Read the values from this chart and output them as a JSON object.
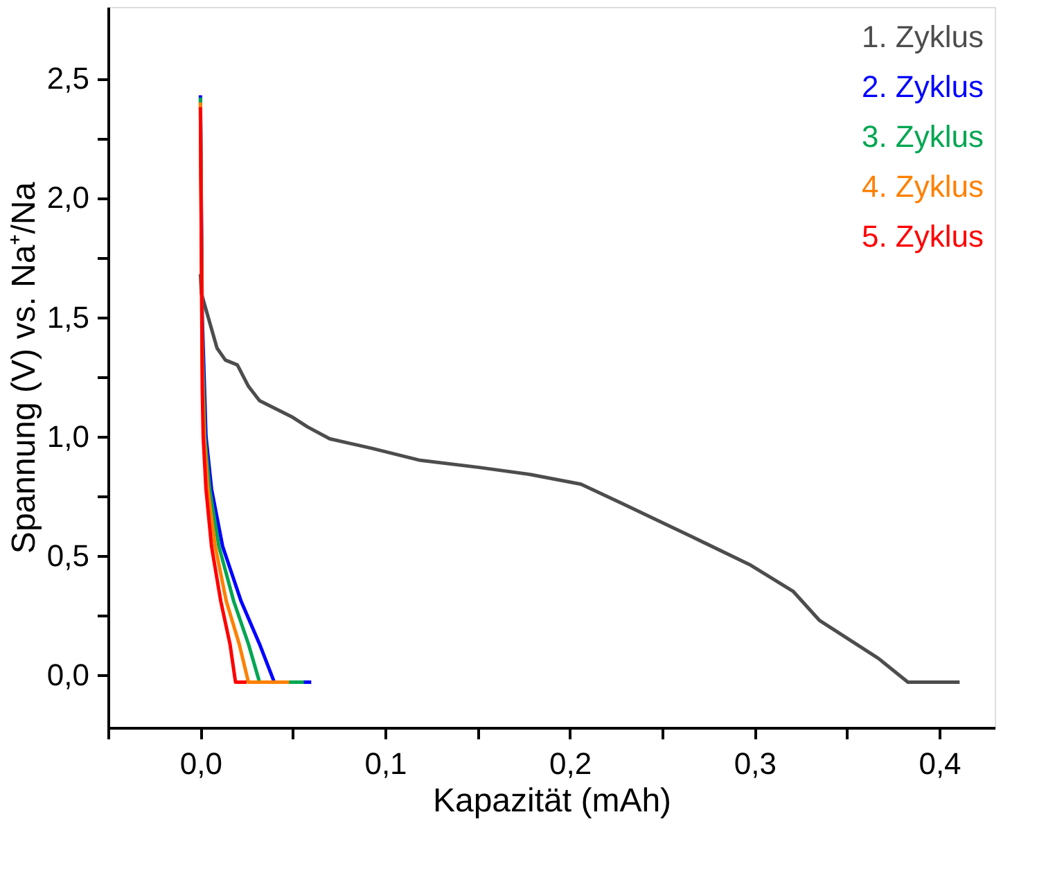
{
  "chart_data": {
    "type": "line",
    "xlabel": "Kapazität (mAh)",
    "ylabel": "Spannung (V) vs. Na⁺/Na",
    "xlim": [
      -0.05,
      0.43
    ],
    "ylim": [
      -0.22,
      2.8
    ],
    "xticks": [
      {
        "value": -0.05,
        "label": null
      },
      {
        "value": 0,
        "label": "0,0"
      },
      {
        "value": 0.05,
        "label": null
      },
      {
        "value": 0.1,
        "label": "0,1"
      },
      {
        "value": 0.15,
        "label": null
      },
      {
        "value": 0.2,
        "label": "0,2"
      },
      {
        "value": 0.25,
        "label": null
      },
      {
        "value": 0.3,
        "label": "0,3"
      },
      {
        "value": 0.35,
        "label": null
      },
      {
        "value": 0.4,
        "label": "0,4"
      }
    ],
    "yticks": [
      {
        "value": 0,
        "label": "0,0"
      },
      {
        "value": 0.25,
        "label": null
      },
      {
        "value": 0.5,
        "label": "0,5"
      },
      {
        "value": 0.75,
        "label": null
      },
      {
        "value": 1.0,
        "label": "1,0"
      },
      {
        "value": 1.25,
        "label": null
      },
      {
        "value": 1.5,
        "label": "1,5"
      },
      {
        "value": 1.75,
        "label": null
      },
      {
        "value": 2.0,
        "label": "2,0"
      },
      {
        "value": 2.25,
        "label": null
      },
      {
        "value": 2.5,
        "label": "2,5"
      }
    ],
    "grid": false,
    "legend": "top right",
    "marker": "none",
    "line_style": "solid",
    "series": [
      {
        "name": "1. Zyklus",
        "color": "#4d4d4d",
        "x": [
          0,
          0.0005,
          0.009,
          0.0135,
          0.02,
          0.026,
          0.032,
          0.05,
          0.058,
          0.07,
          0.093,
          0.119,
          0.151,
          0.179,
          0.206,
          0.228,
          0.266,
          0.298,
          0.321,
          0.335,
          0.367,
          0.383,
          0.411
        ],
        "values": [
          1.68,
          1.6,
          1.37,
          1.32,
          1.3,
          1.21,
          1.15,
          1.08,
          1.04,
          0.99,
          0.95,
          0.9,
          0.87,
          0.84,
          0.8,
          0.72,
          0.58,
          0.46,
          0.35,
          0.23,
          0.07,
          -0.03,
          -0.03
        ]
      },
      {
        "name": "2. Zyklus",
        "color": "#0000ff",
        "x": [
          0,
          0.001,
          0.003,
          0.006,
          0.012,
          0.022,
          0.032,
          0.04,
          0.06
        ],
        "values": [
          2.43,
          1.5,
          1.0,
          0.78,
          0.54,
          0.31,
          0.13,
          -0.03,
          -0.03
        ]
      },
      {
        "name": "3. Zyklus",
        "color": "#00a651",
        "x": [
          0,
          0.001,
          0.0024,
          0.005,
          0.01,
          0.018,
          0.026,
          0.032,
          0.056
        ],
        "values": [
          2.42,
          1.4,
          1.0,
          0.78,
          0.54,
          0.31,
          0.13,
          -0.03,
          -0.03
        ]
      },
      {
        "name": "4. Zyklus",
        "color": "#ff8000",
        "x": [
          0,
          0.001,
          0.002,
          0.004,
          0.008,
          0.014,
          0.021,
          0.026,
          0.048
        ],
        "values": [
          2.4,
          1.3,
          1.0,
          0.78,
          0.54,
          0.31,
          0.13,
          -0.03,
          -0.03
        ]
      },
      {
        "name": "5. Zyklus",
        "color": "#ff0000",
        "x": [
          0,
          0.001,
          0.0015,
          0.003,
          0.006,
          0.011,
          0.016,
          0.019,
          0.025
        ],
        "values": [
          2.38,
          1.2,
          1.0,
          0.78,
          0.54,
          0.31,
          0.13,
          -0.03,
          -0.03
        ]
      }
    ]
  }
}
